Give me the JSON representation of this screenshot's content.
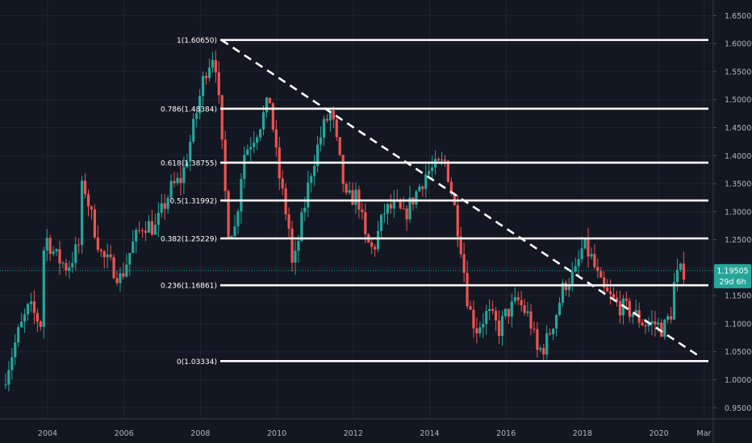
{
  "chart_data": {
    "type": "candlestick",
    "title": "",
    "xlabel": "",
    "ylabel": "",
    "ylim": [
      0.91,
      1.685
    ],
    "y_ticks": [
      "0.95000",
      "1.00000",
      "1.05000",
      "1.10000",
      "1.15000",
      "1.20000",
      "1.25000",
      "1.30000",
      "1.35000",
      "1.40000",
      "1.45000",
      "1.50000",
      "1.55000",
      "1.60000",
      "1.65000"
    ],
    "x_ticks": [
      "2004",
      "2006",
      "2008",
      "2010",
      "2012",
      "2014",
      "2016",
      "2018",
      "2020",
      "Mar"
    ],
    "price_path": [
      [
        2002.9,
        0.99
      ],
      [
        2003.3,
        1.08
      ],
      [
        2003.6,
        1.13
      ],
      [
        2003.9,
        1.1
      ],
      [
        2004.0,
        1.26
      ],
      [
        2004.3,
        1.22
      ],
      [
        2004.6,
        1.2
      ],
      [
        2004.9,
        1.24
      ],
      [
        2005.0,
        1.36
      ],
      [
        2005.2,
        1.3
      ],
      [
        2005.5,
        1.22
      ],
      [
        2005.8,
        1.2
      ],
      [
        2006.0,
        1.18
      ],
      [
        2006.3,
        1.24
      ],
      [
        2006.6,
        1.28
      ],
      [
        2006.9,
        1.27
      ],
      [
        2007.3,
        1.34
      ],
      [
        2007.6,
        1.36
      ],
      [
        2007.9,
        1.45
      ],
      [
        2008.2,
        1.55
      ],
      [
        2008.4,
        1.58
      ],
      [
        2008.5,
        1.56
      ],
      [
        2008.6,
        1.46
      ],
      [
        2008.8,
        1.27
      ],
      [
        2009.0,
        1.27
      ],
      [
        2009.2,
        1.4
      ],
      [
        2009.6,
        1.45
      ],
      [
        2009.9,
        1.5
      ],
      [
        2010.1,
        1.38
      ],
      [
        2010.4,
        1.27
      ],
      [
        2010.5,
        1.19
      ],
      [
        2010.7,
        1.27
      ],
      [
        2011.0,
        1.38
      ],
      [
        2011.3,
        1.45
      ],
      [
        2011.5,
        1.48
      ],
      [
        2011.7,
        1.4
      ],
      [
        2011.9,
        1.32
      ],
      [
        2012.2,
        1.33
      ],
      [
        2012.4,
        1.25
      ],
      [
        2012.6,
        1.23
      ],
      [
        2012.9,
        1.3
      ],
      [
        2013.2,
        1.31
      ],
      [
        2013.4,
        1.29
      ],
      [
        2013.7,
        1.33
      ],
      [
        2014.0,
        1.37
      ],
      [
        2014.3,
        1.38
      ],
      [
        2014.5,
        1.39
      ],
      [
        2014.7,
        1.32
      ],
      [
        2014.9,
        1.24
      ],
      [
        2015.1,
        1.13
      ],
      [
        2015.3,
        1.09
      ],
      [
        2015.6,
        1.12
      ],
      [
        2015.9,
        1.09
      ],
      [
        2016.1,
        1.12
      ],
      [
        2016.4,
        1.14
      ],
      [
        2016.7,
        1.11
      ],
      [
        2016.9,
        1.05
      ],
      [
        2017.1,
        1.06
      ],
      [
        2017.4,
        1.12
      ],
      [
        2017.6,
        1.17
      ],
      [
        2017.9,
        1.19
      ],
      [
        2018.1,
        1.24
      ],
      [
        2018.3,
        1.22
      ],
      [
        2018.6,
        1.16
      ],
      [
        2018.9,
        1.14
      ],
      [
        2019.1,
        1.13
      ],
      [
        2019.4,
        1.12
      ],
      [
        2019.7,
        1.1
      ],
      [
        2020.0,
        1.1
      ],
      [
        2020.2,
        1.09
      ],
      [
        2020.4,
        1.12
      ],
      [
        2020.5,
        1.18
      ],
      [
        2020.7,
        1.195
      ]
    ],
    "fibonacci_levels": [
      {
        "label": "1(1.60650)",
        "value": 1.6065
      },
      {
        "label": "0.786(1.48384)",
        "value": 1.48384
      },
      {
        "label": "0.618(1.38755)",
        "value": 1.38755
      },
      {
        "label": "0.5(1.31992)",
        "value": 1.31992
      },
      {
        "label": "0.382(1.25229)",
        "value": 1.25229
      },
      {
        "label": "0.236(1.16861)",
        "value": 1.16861
      },
      {
        "label": "0(1.03334)",
        "value": 1.03334
      }
    ],
    "trendline": {
      "style": "dashed",
      "from": [
        2008.55,
        1.6065
      ],
      "to": [
        2021.1,
        1.04
      ]
    },
    "last_price": {
      "value": 1.19505,
      "label": "1.19505",
      "countdown": "29d 6h",
      "color": "#26a69a"
    },
    "colors": {
      "up": "#26a69a",
      "down": "#ef5350",
      "background": "#131722",
      "grid": "#1f2430",
      "axis_text": "#b2b5be",
      "fib_line": "#ffffff"
    }
  }
}
